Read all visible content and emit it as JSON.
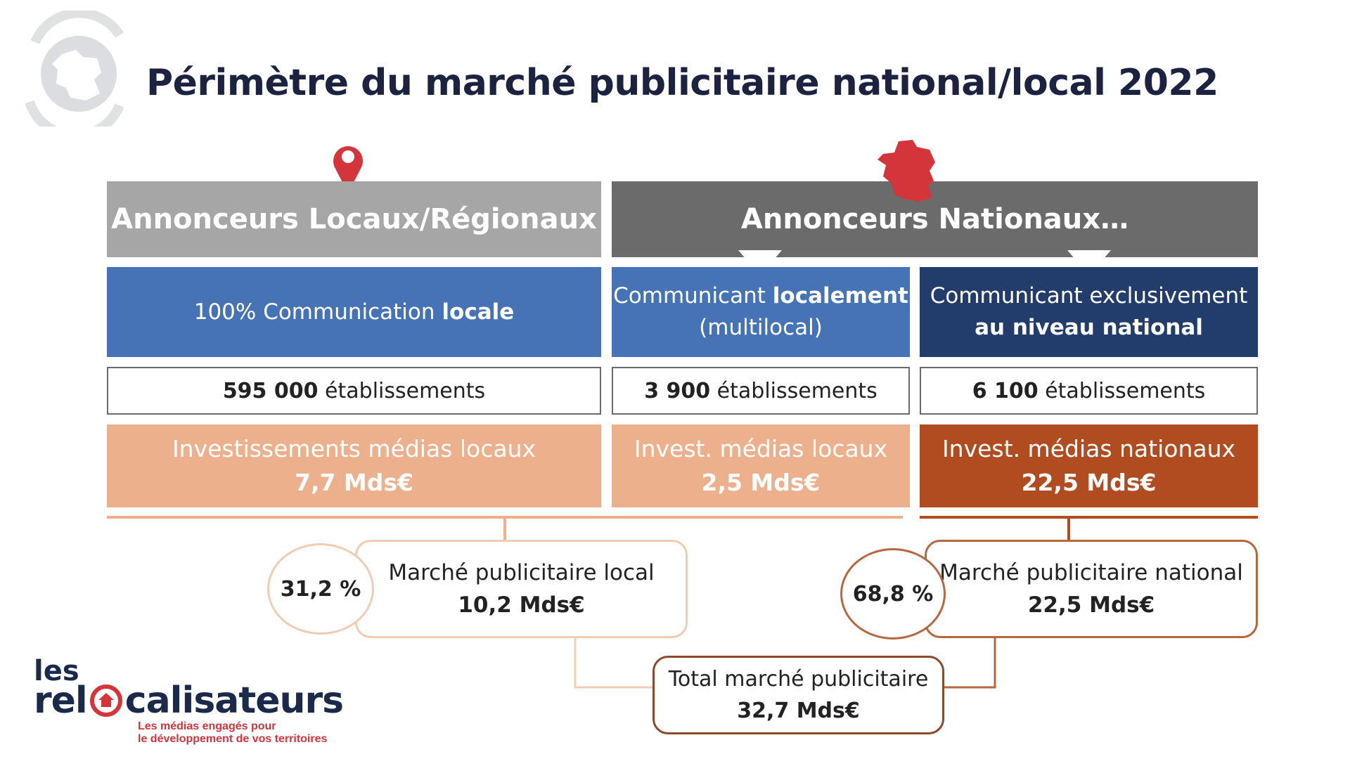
{
  "title": "Périmètre du marché publicitaire national/local 2022",
  "headers": {
    "local": "Annonceurs Locaux/Régionaux",
    "national": "Annonceurs Nationaux…"
  },
  "segments": {
    "local": {
      "line1_pre": "100% Communication ",
      "line1_bold": "locale"
    },
    "multi": {
      "line1_pre": "Communicant ",
      "line1_bold": "localement",
      "line2": "(multilocal)"
    },
    "national": {
      "line1": "Communicant exclusivement",
      "line2_bold": "au niveau national"
    }
  },
  "establishments": {
    "local": {
      "count": "595 000",
      "label": " établissements"
    },
    "multi": {
      "count": "3 900",
      "label": " établissements"
    },
    "national": {
      "count": "6 100",
      "label": " établissements"
    }
  },
  "investments": {
    "local": {
      "label": "Investissements médias locaux",
      "value": "7,7 Mds€"
    },
    "multi": {
      "label": "Invest. médias locaux",
      "value": "2,5 Mds€"
    },
    "national": {
      "label": "Invest. médias nationaux",
      "value": "22,5 Mds€"
    }
  },
  "markets": {
    "local": {
      "label": "Marché publicitaire local",
      "value": "10,2 Mds€",
      "share": "31,2 %"
    },
    "national": {
      "label": "Marché publicitaire national",
      "value": "22,5 Mds€",
      "share": "68,8 %"
    },
    "total": {
      "label": "Total marché publicitaire",
      "value": "32,7 Mds€"
    }
  },
  "logo": {
    "line1": "les",
    "word_part1": "rel",
    "word_part2": "calisateurs",
    "tagline1": "Les médias engagés pour",
    "tagline2": "le développement de vos territoires"
  },
  "icons": {
    "top_left": "france-map-icon",
    "local_marker": "map-pin-icon",
    "national_marker": "france-map-icon"
  },
  "colors": {
    "header_local": "#a6a6a6",
    "header_national": "#6b6b6b",
    "blue": "#4573b6",
    "navy": "#223d6c",
    "peach": "#edb08c",
    "rust": "#b14c21",
    "title": "#1b2340",
    "brand_red": "#d6333b",
    "brand_navy": "#1b2a4a"
  }
}
